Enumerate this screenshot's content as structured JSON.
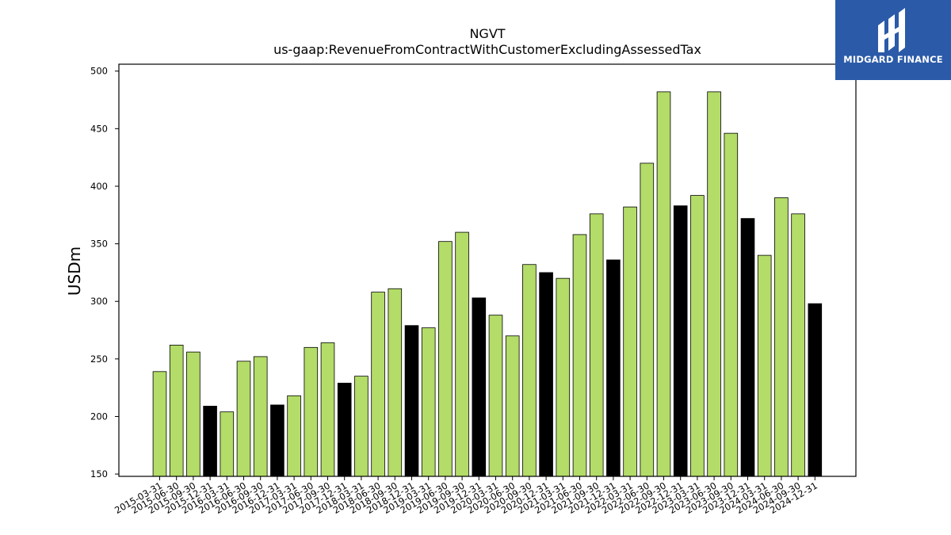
{
  "brand": {
    "name": "MIDGARD FINANCE",
    "color": "#2b5aa8"
  },
  "chart_data": {
    "type": "bar",
    "title": "NGVT",
    "subtitle": "us-gaap:RevenueFromContractWithCustomerExcludingAssessedTax",
    "xlabel": "",
    "ylabel": "USDm",
    "ylim": [
      148,
      506
    ],
    "yticks": [
      150,
      200,
      250,
      300,
      350,
      400,
      450,
      500
    ],
    "grid": false,
    "colors": {
      "quarter": "#b3dc68",
      "year_end": "#000000",
      "edge": "#000000"
    },
    "categories": [
      "2015-03-31",
      "2015-06-30",
      "2015-09-30",
      "2015-12-31",
      "2016-03-31",
      "2016-06-30",
      "2016-09-30",
      "2016-12-31",
      "2017-03-31",
      "2017-06-30",
      "2017-09-30",
      "2017-12-31",
      "2018-03-31",
      "2018-06-30",
      "2018-09-30",
      "2018-12-31",
      "2019-03-31",
      "2019-06-30",
      "2019-09-30",
      "2019-12-31",
      "2020-03-31",
      "2020-06-30",
      "2020-09-30",
      "2020-12-31",
      "2021-03-31",
      "2021-06-30",
      "2021-09-30",
      "2021-12-31",
      "2022-03-31",
      "2022-06-30",
      "2022-09-30",
      "2022-12-31",
      "2023-03-31",
      "2023-06-30",
      "2023-09-30",
      "2023-12-31",
      "2024-03-31",
      "2024-06-30",
      "2024-09-30",
      "2024-12-31"
    ],
    "values": [
      239,
      262,
      256,
      209,
      204,
      248,
      252,
      210,
      218,
      260,
      264,
      229,
      235,
      308,
      311,
      279,
      277,
      352,
      360,
      303,
      288,
      270,
      332,
      325,
      320,
      358,
      376,
      336,
      382,
      420,
      482,
      383,
      392,
      482,
      446,
      372,
      340,
      390,
      376,
      298
    ]
  }
}
